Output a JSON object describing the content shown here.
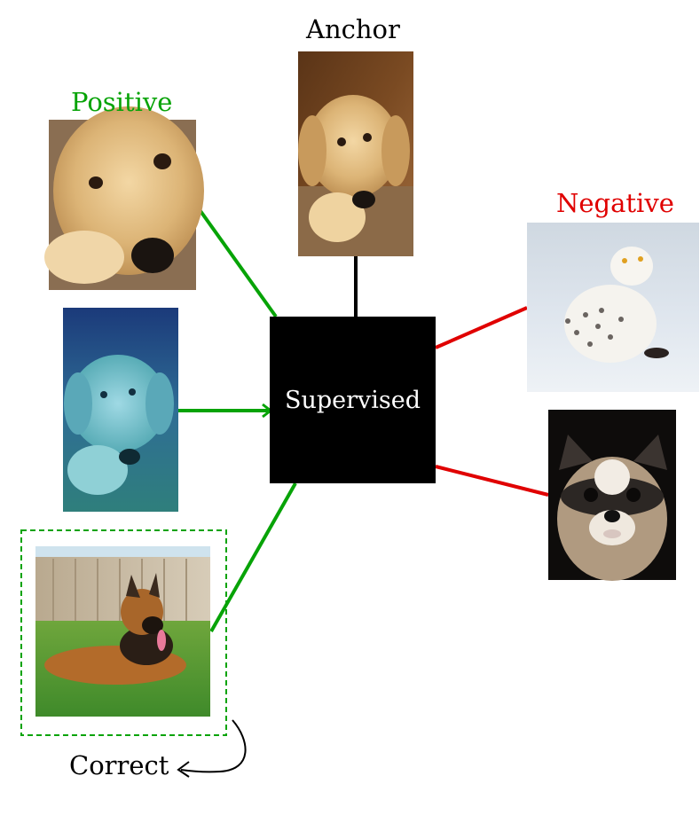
{
  "labels": {
    "anchor": "Anchor",
    "positive": "Positive",
    "negative": "Negative",
    "center": "Supervised",
    "correct": "Correct"
  },
  "colors": {
    "positive": "#07a307",
    "negative": "#e00000",
    "box": "#000000",
    "text": "#000000"
  },
  "images": {
    "anchor": "golden-retriever-puppy-photo",
    "positive_1": "golden-retriever-closeup-photo",
    "positive_2": "blue-tinted-retriever-photo",
    "positive_3": "german-shepherd-on-grass-photo",
    "negative_1": "snowy-owl-photo",
    "negative_2": "raccoon-photo"
  }
}
